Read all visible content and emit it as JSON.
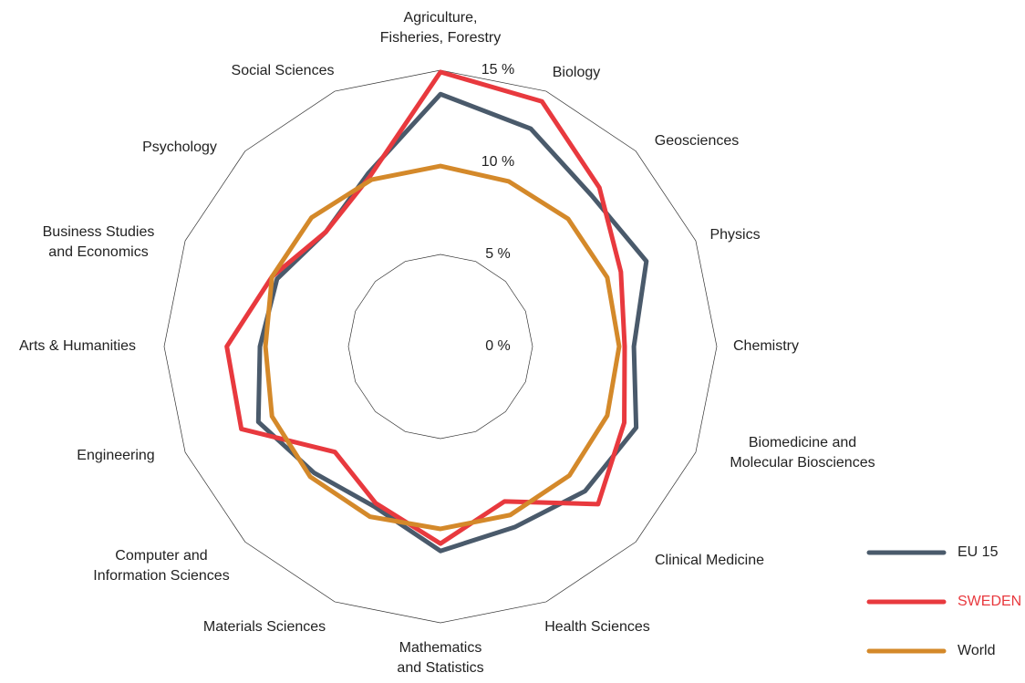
{
  "chart_data": {
    "type": "radar",
    "categories": [
      "Agriculture,\nFisheries, Forestry",
      "Biology",
      "Geosciences",
      "Physics",
      "Chemistry",
      "Biomedicine and\nMolecular Biosciences",
      "Clinical Medicine",
      "Health Sciences",
      "Mathematics\nand Statistics",
      "Materials Sciences",
      "Computer and\nInformation Sciences",
      "Engineering",
      "Arts & Humanities",
      "Business Studies\nand Economics",
      "Psychology",
      "Social Sciences"
    ],
    "series": [
      {
        "name": "EU 15",
        "color": "#4a5a6b",
        "values": [
          13.7,
          12.8,
          11.6,
          12.1,
          10.5,
          11.5,
          11.1,
          10.6,
          11.1,
          9.4,
          9.7,
          10.7,
          9.8,
          9.6,
          8.8,
          10.2
        ]
      },
      {
        "name": "SWEDEN",
        "color": "#e8393e",
        "values": [
          14.9,
          14.4,
          12.2,
          10.6,
          10.0,
          10.8,
          12.1,
          9.1,
          10.7,
          9.2,
          8.1,
          11.7,
          11.6,
          9.9,
          8.8,
          10.0
        ]
      },
      {
        "name": "World",
        "color": "#d4892a",
        "values": [
          9.8,
          9.7,
          9.8,
          9.8,
          9.7,
          9.8,
          9.9,
          9.9,
          9.9,
          10.0,
          10.0,
          9.9,
          9.5,
          9.9,
          9.9,
          9.8
        ]
      }
    ],
    "ylim": [
      0,
      15
    ],
    "yticks": [
      {
        "value": 0,
        "label": "0 %"
      },
      {
        "value": 5,
        "label": "5 %"
      },
      {
        "value": 10,
        "label": "10 %"
      },
      {
        "value": 15,
        "label": "15 %"
      }
    ],
    "grid_levels": [
      5,
      15
    ],
    "legend": "lower right"
  }
}
